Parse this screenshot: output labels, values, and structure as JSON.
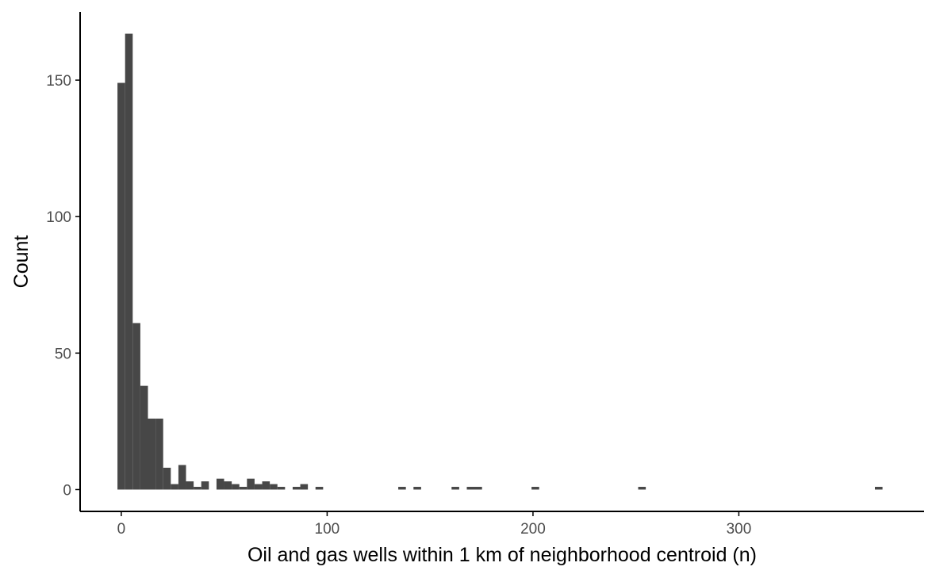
{
  "chart_data": {
    "type": "bar",
    "subtype": "histogram",
    "title": "",
    "xlabel": "Oil and gas wells within 1 km of neighborhood centroid (n)",
    "ylabel": "Count",
    "xlim": [
      -20,
      390
    ],
    "ylim": [
      -8,
      175
    ],
    "x_ticks": [
      0,
      100,
      200,
      300
    ],
    "x_tick_labels": [
      "0",
      "100",
      "200",
      "300"
    ],
    "y_ticks": [
      0,
      50,
      100,
      150
    ],
    "y_tick_labels": [
      "0",
      "50",
      "100",
      "150"
    ],
    "grid": false,
    "legend": "none",
    "bin_width": 3.7,
    "bins": [
      {
        "x0": -1.85,
        "x1": 1.85,
        "count": 149
      },
      {
        "x0": 1.85,
        "x1": 5.55,
        "count": 167
      },
      {
        "x0": 5.55,
        "x1": 9.25,
        "count": 61
      },
      {
        "x0": 9.25,
        "x1": 12.95,
        "count": 38
      },
      {
        "x0": 12.95,
        "x1": 16.65,
        "count": 26
      },
      {
        "x0": 16.65,
        "x1": 20.35,
        "count": 26
      },
      {
        "x0": 20.35,
        "x1": 24.05,
        "count": 8
      },
      {
        "x0": 24.05,
        "x1": 27.75,
        "count": 2
      },
      {
        "x0": 27.75,
        "x1": 31.45,
        "count": 9
      },
      {
        "x0": 31.45,
        "x1": 35.15,
        "count": 3
      },
      {
        "x0": 35.15,
        "x1": 38.85,
        "count": 1
      },
      {
        "x0": 38.85,
        "x1": 42.55,
        "count": 3
      },
      {
        "x0": 42.55,
        "x1": 46.25,
        "count": 0
      },
      {
        "x0": 46.25,
        "x1": 49.95,
        "count": 4
      },
      {
        "x0": 49.95,
        "x1": 53.65,
        "count": 3
      },
      {
        "x0": 53.65,
        "x1": 57.35,
        "count": 2
      },
      {
        "x0": 57.35,
        "x1": 61.05,
        "count": 1
      },
      {
        "x0": 61.05,
        "x1": 64.75,
        "count": 4
      },
      {
        "x0": 64.75,
        "x1": 68.45,
        "count": 2
      },
      {
        "x0": 68.45,
        "x1": 72.15,
        "count": 3
      },
      {
        "x0": 72.15,
        "x1": 75.85,
        "count": 2
      },
      {
        "x0": 75.85,
        "x1": 79.55,
        "count": 1
      },
      {
        "x0": 79.55,
        "x1": 83.25,
        "count": 0
      },
      {
        "x0": 83.25,
        "x1": 86.95,
        "count": 1
      },
      {
        "x0": 86.95,
        "x1": 90.65,
        "count": 2
      },
      {
        "x0": 90.65,
        "x1": 94.35,
        "count": 0
      },
      {
        "x0": 94.35,
        "x1": 98.05,
        "count": 1
      },
      {
        "x0": 134.55,
        "x1": 138.25,
        "count": 1
      },
      {
        "x0": 141.95,
        "x1": 145.65,
        "count": 1
      },
      {
        "x0": 160.45,
        "x1": 164.15,
        "count": 1
      },
      {
        "x0": 167.85,
        "x1": 175.25,
        "count": 1
      },
      {
        "x0": 199.3,
        "x1": 203.0,
        "count": 1
      },
      {
        "x0": 251.1,
        "x1": 254.8,
        "count": 1
      },
      {
        "x0": 366.1,
        "x1": 369.8,
        "count": 1
      }
    ]
  },
  "colors": {
    "bar_fill": "#474747",
    "axis_line": "#000000",
    "tick_label": "#4d4d4d",
    "axis_title": "#000000",
    "background": "#ffffff"
  }
}
